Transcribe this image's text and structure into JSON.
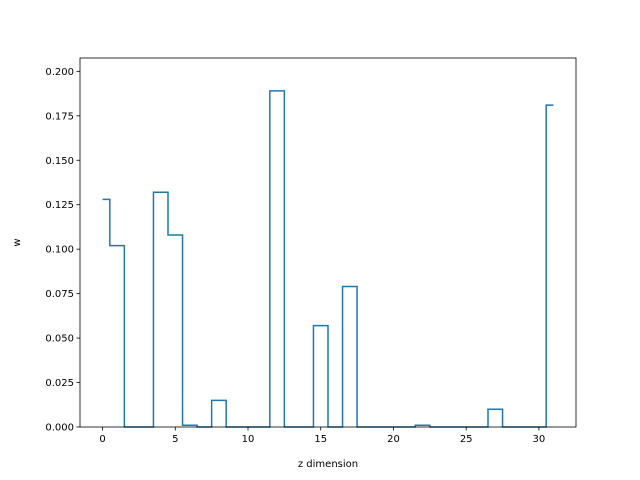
{
  "chart_data": {
    "type": "line",
    "style": "step-mid",
    "title": "",
    "xlabel": "z dimension",
    "ylabel": "w",
    "xlim": [
      -1.55,
      32.55
    ],
    "ylim": [
      0,
      0.2075
    ],
    "grid": false,
    "x_ticks": [
      {
        "value": 0,
        "label": "0"
      },
      {
        "value": 5,
        "label": "5"
      },
      {
        "value": 10,
        "label": "10"
      },
      {
        "value": 15,
        "label": "15"
      },
      {
        "value": 20,
        "label": "20"
      },
      {
        "value": 25,
        "label": "25"
      },
      {
        "value": 30,
        "label": "30"
      }
    ],
    "y_ticks": [
      {
        "value": 0.0,
        "label": "0.000"
      },
      {
        "value": 0.025,
        "label": "0.025"
      },
      {
        "value": 0.05,
        "label": "0.050"
      },
      {
        "value": 0.075,
        "label": "0.075"
      },
      {
        "value": 0.1,
        "label": "0.100"
      },
      {
        "value": 0.125,
        "label": "0.125"
      },
      {
        "value": 0.15,
        "label": "0.150"
      },
      {
        "value": 0.175,
        "label": "0.175"
      },
      {
        "value": 0.2,
        "label": "0.200"
      }
    ],
    "series": [
      {
        "color": "#1f77b4",
        "x": [
          0,
          1,
          2,
          3,
          4,
          5,
          6,
          7,
          8,
          9,
          10,
          11,
          12,
          13,
          14,
          15,
          16,
          17,
          18,
          19,
          20,
          21,
          22,
          23,
          24,
          25,
          26,
          27,
          28,
          29,
          30,
          31
        ],
        "values": [
          0.128,
          0.102,
          0.0,
          0.0,
          0.132,
          0.108,
          0.001,
          0.0,
          0.015,
          0.0,
          0.0,
          0.0,
          0.189,
          0.0,
          0.0,
          0.057,
          0.0,
          0.079,
          0.0,
          0.0,
          0.0,
          0.0,
          0.001,
          0.0,
          0.0,
          0.0,
          0.0,
          0.01,
          0.0,
          0.0,
          0.0,
          0.181
        ]
      }
    ]
  }
}
